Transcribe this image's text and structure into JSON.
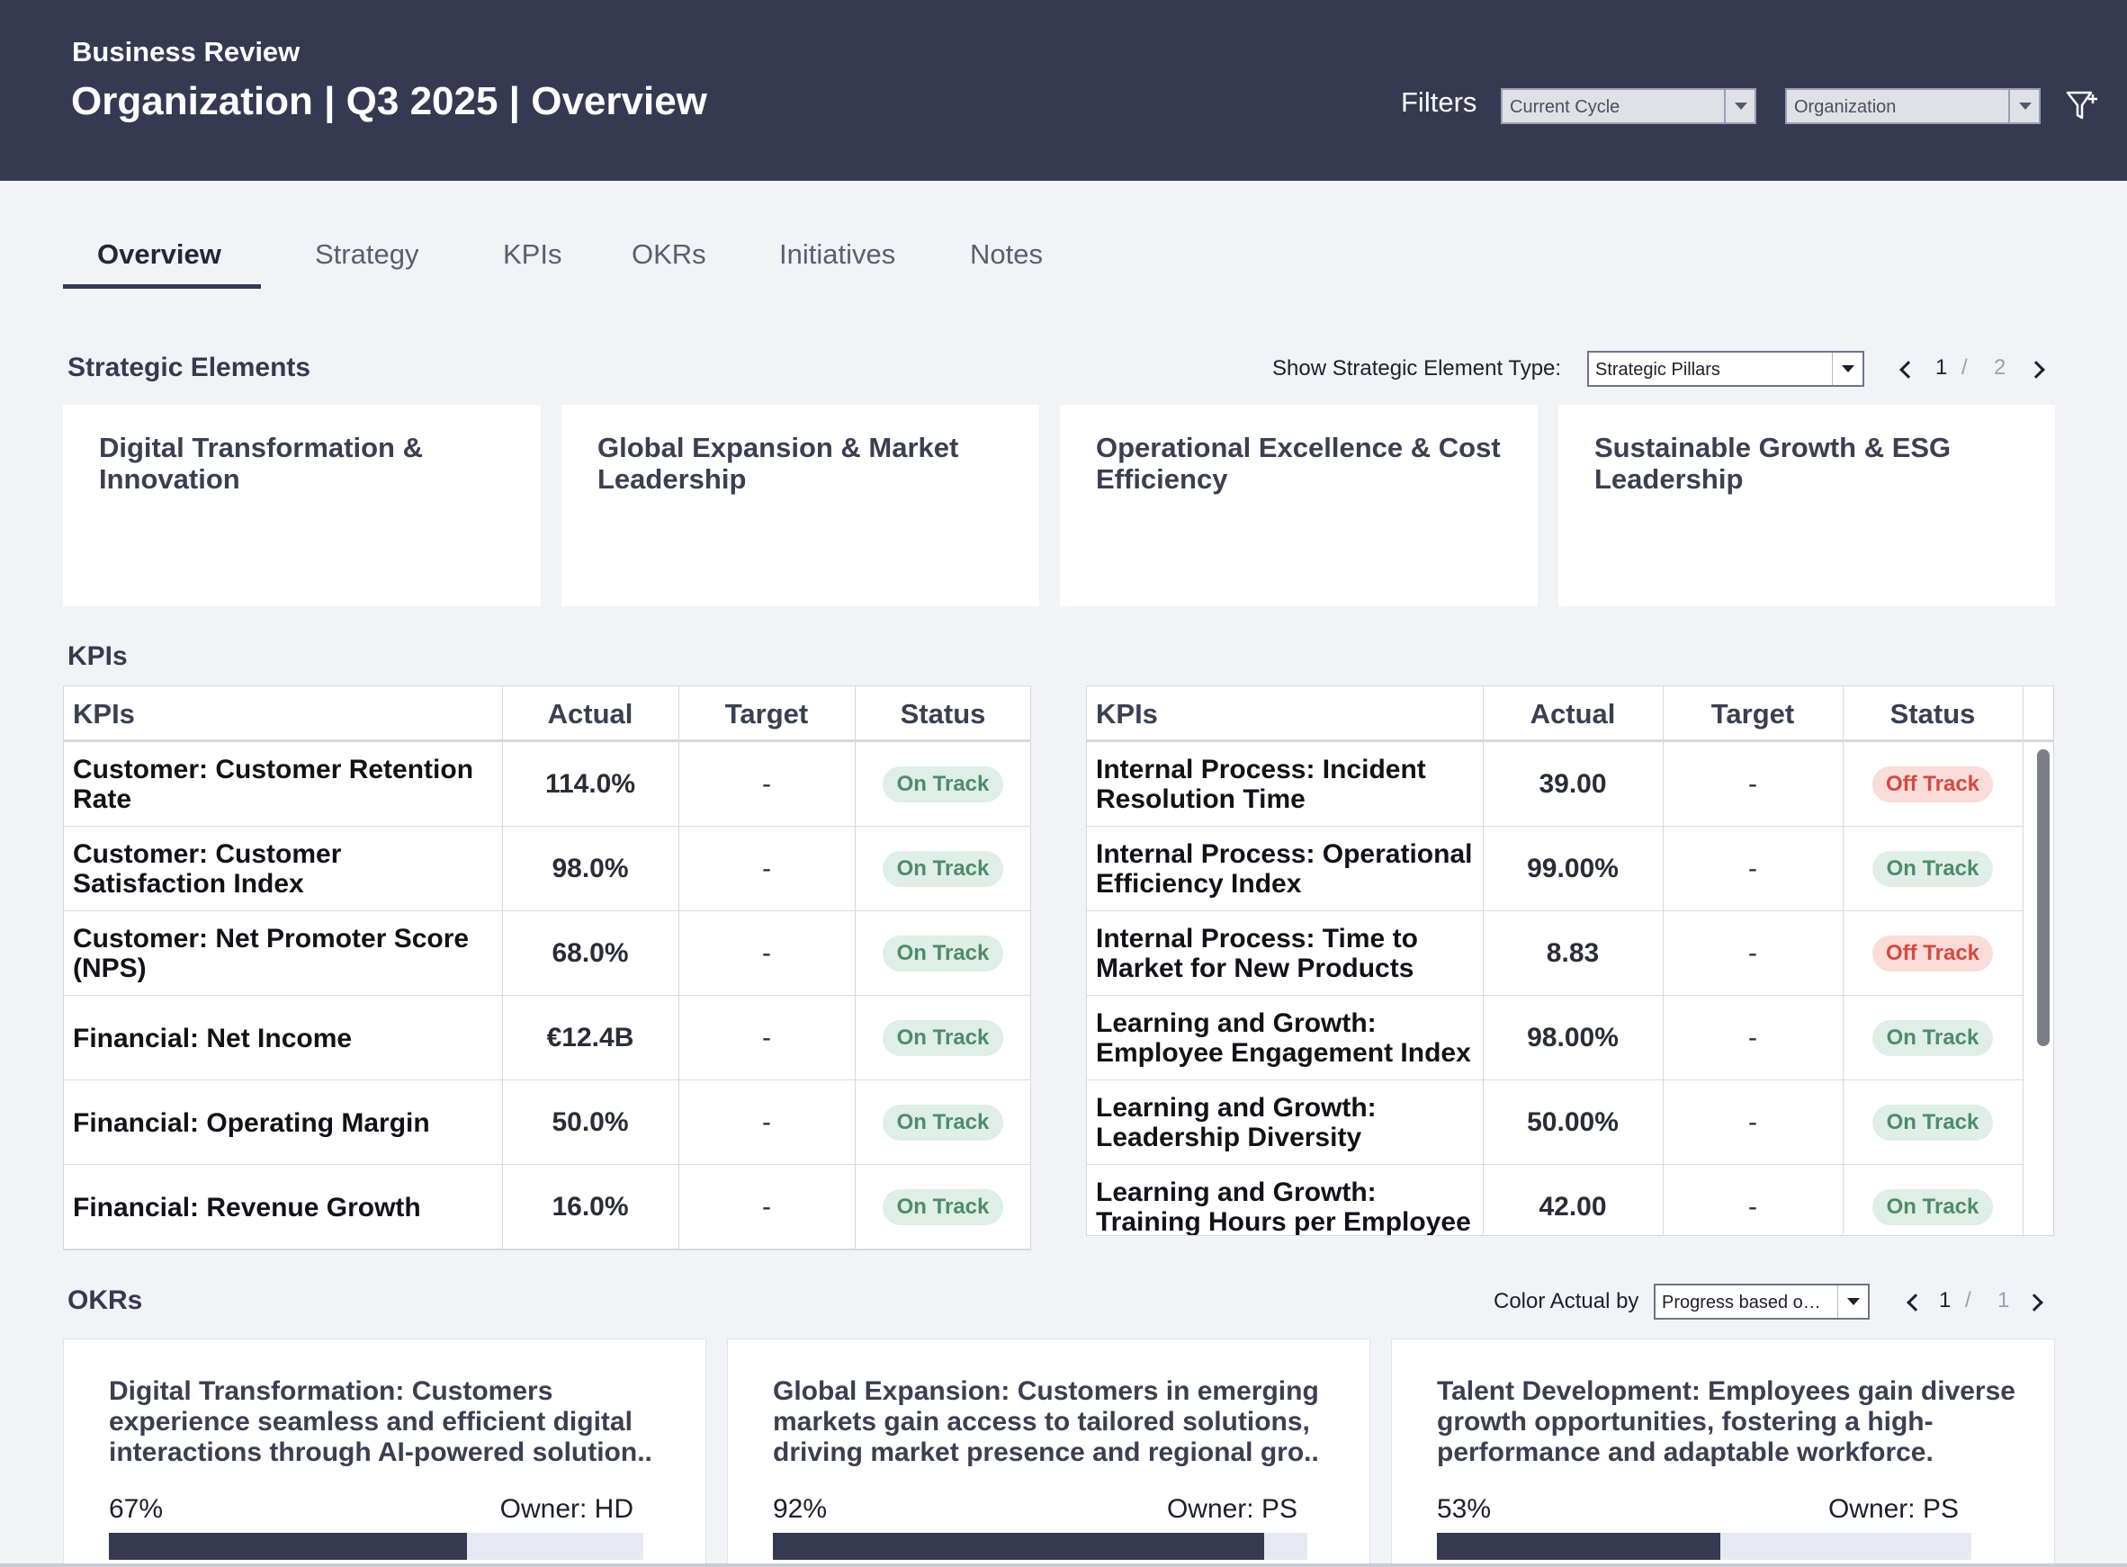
{
  "header": {
    "breadcrumb": "Business Review",
    "title": "Organization | Q3 2025 | Overview",
    "filters_label": "Filters",
    "cycle_select": "Current Cycle",
    "org_select": "Organization",
    "filter_icon": "funnel-plus-icon"
  },
  "tabs": [
    "Overview",
    "Strategy",
    "KPIs",
    "OKRs",
    "Initiatives",
    "Notes"
  ],
  "active_tab": "Overview",
  "strategic": {
    "title": "Strategic Elements",
    "type_label": "Show Strategic Element Type:",
    "type_value": "Strategic Pillars",
    "page_current": "1",
    "page_sep": "/",
    "page_total": "2",
    "pillars": [
      "Digital Transformation & Innovation",
      "Global Expansion & Market Leadership",
      "Operational Excellence & Cost Efficiency",
      "Sustainable Growth & ESG Leadership"
    ]
  },
  "kpis": {
    "title": "KPIs",
    "columns": [
      "KPIs",
      "Actual",
      "Target",
      "Status"
    ],
    "left": [
      {
        "name": "Customer: Customer Retention Rate",
        "actual": "114.0%",
        "target": "-",
        "status": "On Track"
      },
      {
        "name": "Customer: Customer Satisfaction Index",
        "actual": "98.0%",
        "target": "-",
        "status": "On Track"
      },
      {
        "name": "Customer: Net Promoter Score (NPS)",
        "actual": "68.0%",
        "target": "-",
        "status": "On Track"
      },
      {
        "name": "Financial: Net Income",
        "actual": "€12.4B",
        "target": "-",
        "status": "On Track"
      },
      {
        "name": "Financial: Operating Margin",
        "actual": "50.0%",
        "target": "-",
        "status": "On Track"
      },
      {
        "name": "Financial: Revenue Growth",
        "actual": "16.0%",
        "target": "-",
        "status": "On Track"
      }
    ],
    "right": [
      {
        "name": "Internal Process: Incident Resolution Time",
        "actual": "39.00",
        "target": "-",
        "status": "Off Track"
      },
      {
        "name": "Internal Process: Operational Efficiency Index",
        "actual": "99.00%",
        "target": "-",
        "status": "On Track"
      },
      {
        "name": "Internal Process: Time to Market for New Products",
        "actual": "8.83",
        "target": "-",
        "status": "Off Track"
      },
      {
        "name": "Learning and Growth: Employee Engagement Index",
        "actual": "98.00%",
        "target": "-",
        "status": "On Track"
      },
      {
        "name": "Learning and Growth: Leadership Diversity",
        "actual": "50.00%",
        "target": "-",
        "status": "On Track"
      },
      {
        "name": "Learning and Growth: Training Hours per Employee",
        "actual": "42.00",
        "target": "-",
        "status": "On Track"
      }
    ]
  },
  "okrs": {
    "title": "OKRs",
    "color_label": "Color Actual by",
    "color_value": "Progress based o…",
    "page_current": "1",
    "page_sep": "/",
    "page_total": "1",
    "cards": [
      {
        "title": "Digital Transformation: Customers experience seamless and efficient digital interactions through AI-powered solution..",
        "progress": 67,
        "progress_label": "67%",
        "owner": "Owner: HD"
      },
      {
        "title": "Global Expansion: Customers in emerging markets gain access to tailored solutions, driving market presence and regional gro..",
        "progress": 92,
        "progress_label": "92%",
        "owner": "Owner: PS"
      },
      {
        "title": "Talent Development: Employees gain diverse growth opportunities, fostering a high-performance and adaptable workforce.",
        "progress": 53,
        "progress_label": "53%",
        "owner": "Owner: PS"
      }
    ]
  },
  "colors": {
    "header_bg": "#353a52",
    "page_bg": "#f2f3f7",
    "on_track_bg": "#dfeee6",
    "on_track_text": "#4e8c69",
    "off_track_bg": "#fadcd9",
    "off_track_text": "#d24b40"
  }
}
